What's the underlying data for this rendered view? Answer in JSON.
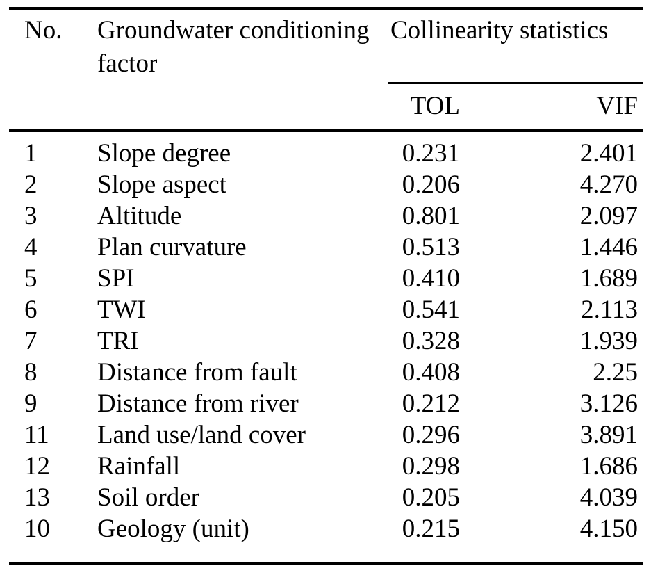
{
  "table": {
    "headers": {
      "no": "No.",
      "factor": "Groundwater conditioning factor",
      "group": "Collinearity statistics",
      "tol": "TOL",
      "vif": "VIF"
    },
    "rows": [
      {
        "no": "1",
        "factor": "Slope degree",
        "tol": "0.231",
        "vif": "2.401"
      },
      {
        "no": "2",
        "factor": "Slope aspect",
        "tol": "0.206",
        "vif": "4.270"
      },
      {
        "no": "3",
        "factor": "Altitude",
        "tol": "0.801",
        "vif": "2.097"
      },
      {
        "no": "4",
        "factor": "Plan curvature",
        "tol": "0.513",
        "vif": "1.446"
      },
      {
        "no": "5",
        "factor": "SPI",
        "tol": "0.410",
        "vif": "1.689"
      },
      {
        "no": "6",
        "factor": "TWI",
        "tol": "0.541",
        "vif": "2.113"
      },
      {
        "no": "7",
        "factor": "TRI",
        "tol": "0.328",
        "vif": "1.939"
      },
      {
        "no": "8",
        "factor": "Distance from fault",
        "tol": "0.408",
        "vif": "2.25"
      },
      {
        "no": "9",
        "factor": "Distance from river",
        "tol": "0.212",
        "vif": "3.126"
      },
      {
        "no": "11",
        "factor": "Land use/land cover",
        "tol": "0.296",
        "vif": "3.891"
      },
      {
        "no": "12",
        "factor": "Rainfall",
        "tol": "0.298",
        "vif": "1.686"
      },
      {
        "no": "13",
        "factor": "Soil order",
        "tol": "0.205",
        "vif": "4.039"
      },
      {
        "no": "10",
        "factor": "Geology (unit)",
        "tol": "0.215",
        "vif": "4.150"
      }
    ],
    "text_color": "#000000",
    "background_color": "#ffffff"
  }
}
